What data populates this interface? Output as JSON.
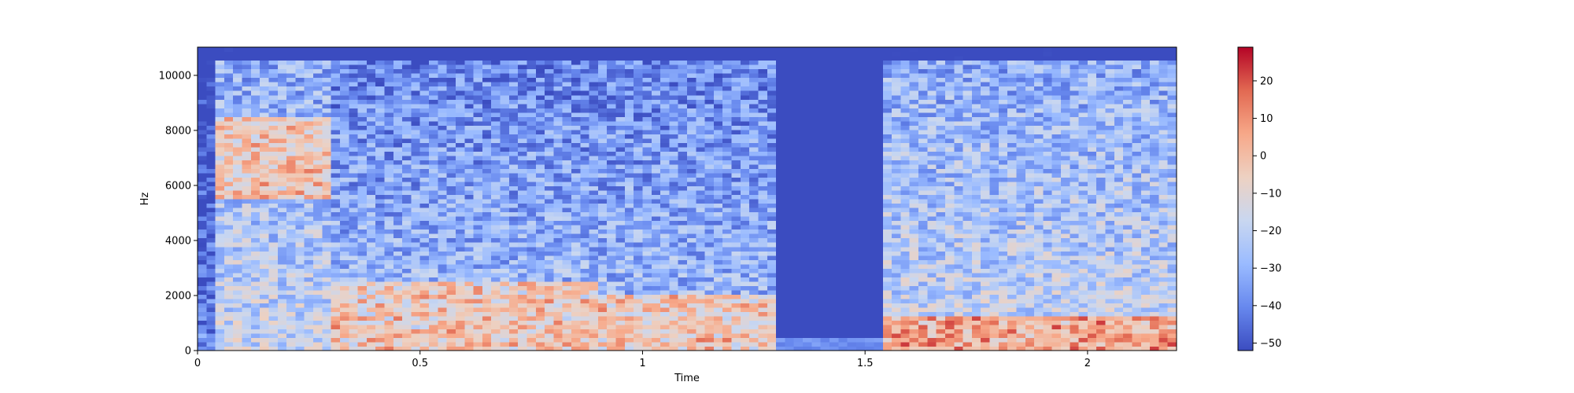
{
  "chart_data": {
    "type": "heatmap",
    "subtype": "spectrogram",
    "xlabel": "Time",
    "ylabel": "Hz",
    "xlim": [
      0,
      2.2
    ],
    "ylim": [
      0,
      11025
    ],
    "x_ticks": [
      0,
      0.5,
      1,
      1.5,
      2
    ],
    "x_tick_labels": [
      "0",
      "0.5",
      "1",
      "1.5",
      "2"
    ],
    "y_ticks": [
      0,
      2000,
      4000,
      6000,
      8000,
      10000
    ],
    "y_tick_labels": [
      "0",
      "2000",
      "4000",
      "6000",
      "8000",
      "10000"
    ],
    "colorbar": {
      "colormap": "coolwarm",
      "range": [
        -52,
        29
      ],
      "ticks": [
        20,
        10,
        0,
        -10,
        -20,
        -30,
        -40,
        -50
      ],
      "tick_labels": [
        "20",
        "10",
        "0",
        "−10",
        "−20",
        "−30",
        "−40",
        "−50"
      ],
      "colors": [
        "#3b4cc0",
        "#6788ee",
        "#9abbff",
        "#c9d7f0",
        "#edd1c2",
        "#f7a889",
        "#e26952",
        "#b40426"
      ]
    },
    "segments": [
      {
        "t_start": 0.0,
        "t_end": 0.05,
        "level": "low"
      },
      {
        "t_start": 0.05,
        "t_end": 0.3,
        "level": "high",
        "hot_band_hz": [
          5500,
          8500
        ]
      },
      {
        "t_start": 0.3,
        "t_end": 0.9,
        "level": "medium",
        "hot_band_hz": [
          0,
          2500
        ]
      },
      {
        "t_start": 0.9,
        "t_end": 1.3,
        "level": "medium",
        "hot_band_hz": [
          0,
          2000
        ]
      },
      {
        "t_start": 1.3,
        "t_end": 1.55,
        "level": "silence"
      },
      {
        "t_start": 1.55,
        "t_end": 2.2,
        "level": "high",
        "hot_band_hz": [
          0,
          1300
        ]
      }
    ]
  }
}
